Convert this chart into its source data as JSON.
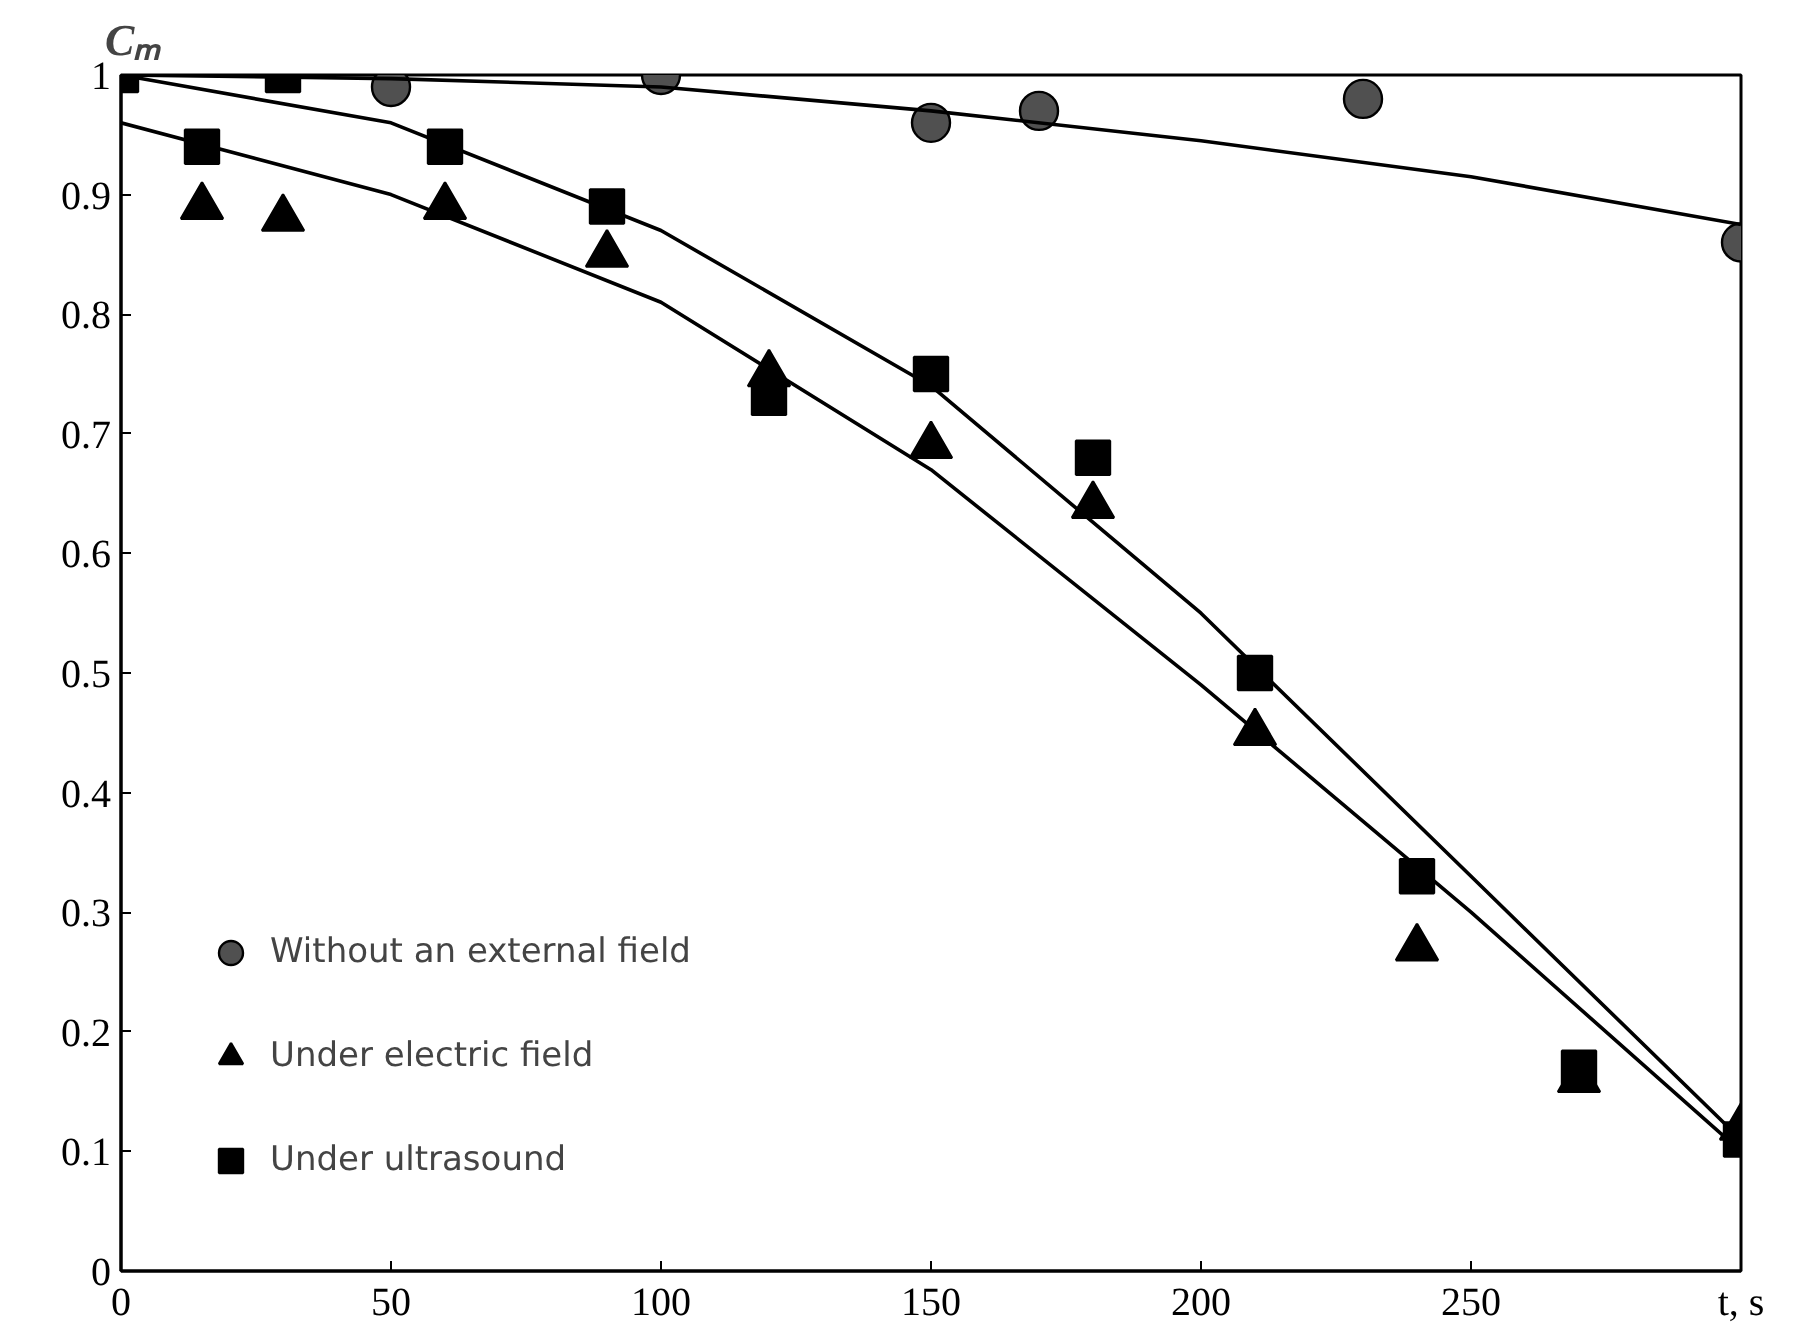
{
  "chart_data": {
    "type": "scatter",
    "ylabel": "Cₘ",
    "xlim": [
      0,
      300
    ],
    "ylim": [
      0,
      1
    ],
    "xticks": [
      0,
      50,
      100,
      150,
      200,
      250,
      {
        "value": 300,
        "label": "t, s"
      }
    ],
    "yticks": [
      0,
      0.1,
      0.2,
      0.3,
      0.4,
      0.5,
      0.6,
      0.7,
      0.8,
      0.9,
      1
    ],
    "grid": false,
    "legend": "bottom left",
    "series": [
      {
        "name": "Without an external field",
        "marker": "circle",
        "color": "#505050",
        "x": [
          50,
          100,
          150,
          170,
          230,
          300
        ],
        "values": [
          0.99,
          1.0,
          0.96,
          0.97,
          0.98,
          0.86
        ]
      },
      {
        "name": "Under electric field",
        "marker": "triangle",
        "color": "#000000",
        "x": [
          15,
          30,
          60,
          90,
          120,
          150,
          180,
          210,
          240,
          270,
          300
        ],
        "values": [
          0.89,
          0.88,
          0.89,
          0.85,
          0.75,
          0.69,
          0.64,
          0.45,
          0.27,
          0.16,
          0.12
        ]
      },
      {
        "name": "Under ultrasound",
        "marker": "square",
        "color": "#000000",
        "x": [
          0,
          15,
          30,
          60,
          90,
          120,
          150,
          180,
          210,
          240,
          270,
          300
        ],
        "values": [
          1.0,
          0.94,
          1.0,
          0.94,
          0.89,
          0.73,
          0.75,
          0.68,
          0.5,
          0.33,
          0.17,
          0.11
        ]
      },
      {
        "type": "line",
        "marker": "none",
        "line_style": "solid",
        "color": "#000000",
        "x": [
          0,
          50,
          100,
          150,
          200,
          250,
          300
        ],
        "values": [
          1.0,
          0.997,
          0.99,
          0.97,
          0.945,
          0.915,
          0.875
        ]
      },
      {
        "type": "line",
        "marker": "none",
        "line_style": "solid",
        "color": "#000000",
        "x": [
          0,
          50,
          100,
          150,
          200,
          250,
          300
        ],
        "values": [
          1.0,
          0.96,
          0.87,
          0.74,
          0.55,
          0.33,
          0.11
        ]
      },
      {
        "type": "line",
        "marker": "none",
        "line_style": "solid",
        "color": "#000000",
        "x": [
          0,
          50,
          100,
          150,
          200,
          250,
          300
        ],
        "values": [
          0.96,
          0.9,
          0.81,
          0.67,
          0.49,
          0.3,
          0.1
        ]
      }
    ]
  }
}
